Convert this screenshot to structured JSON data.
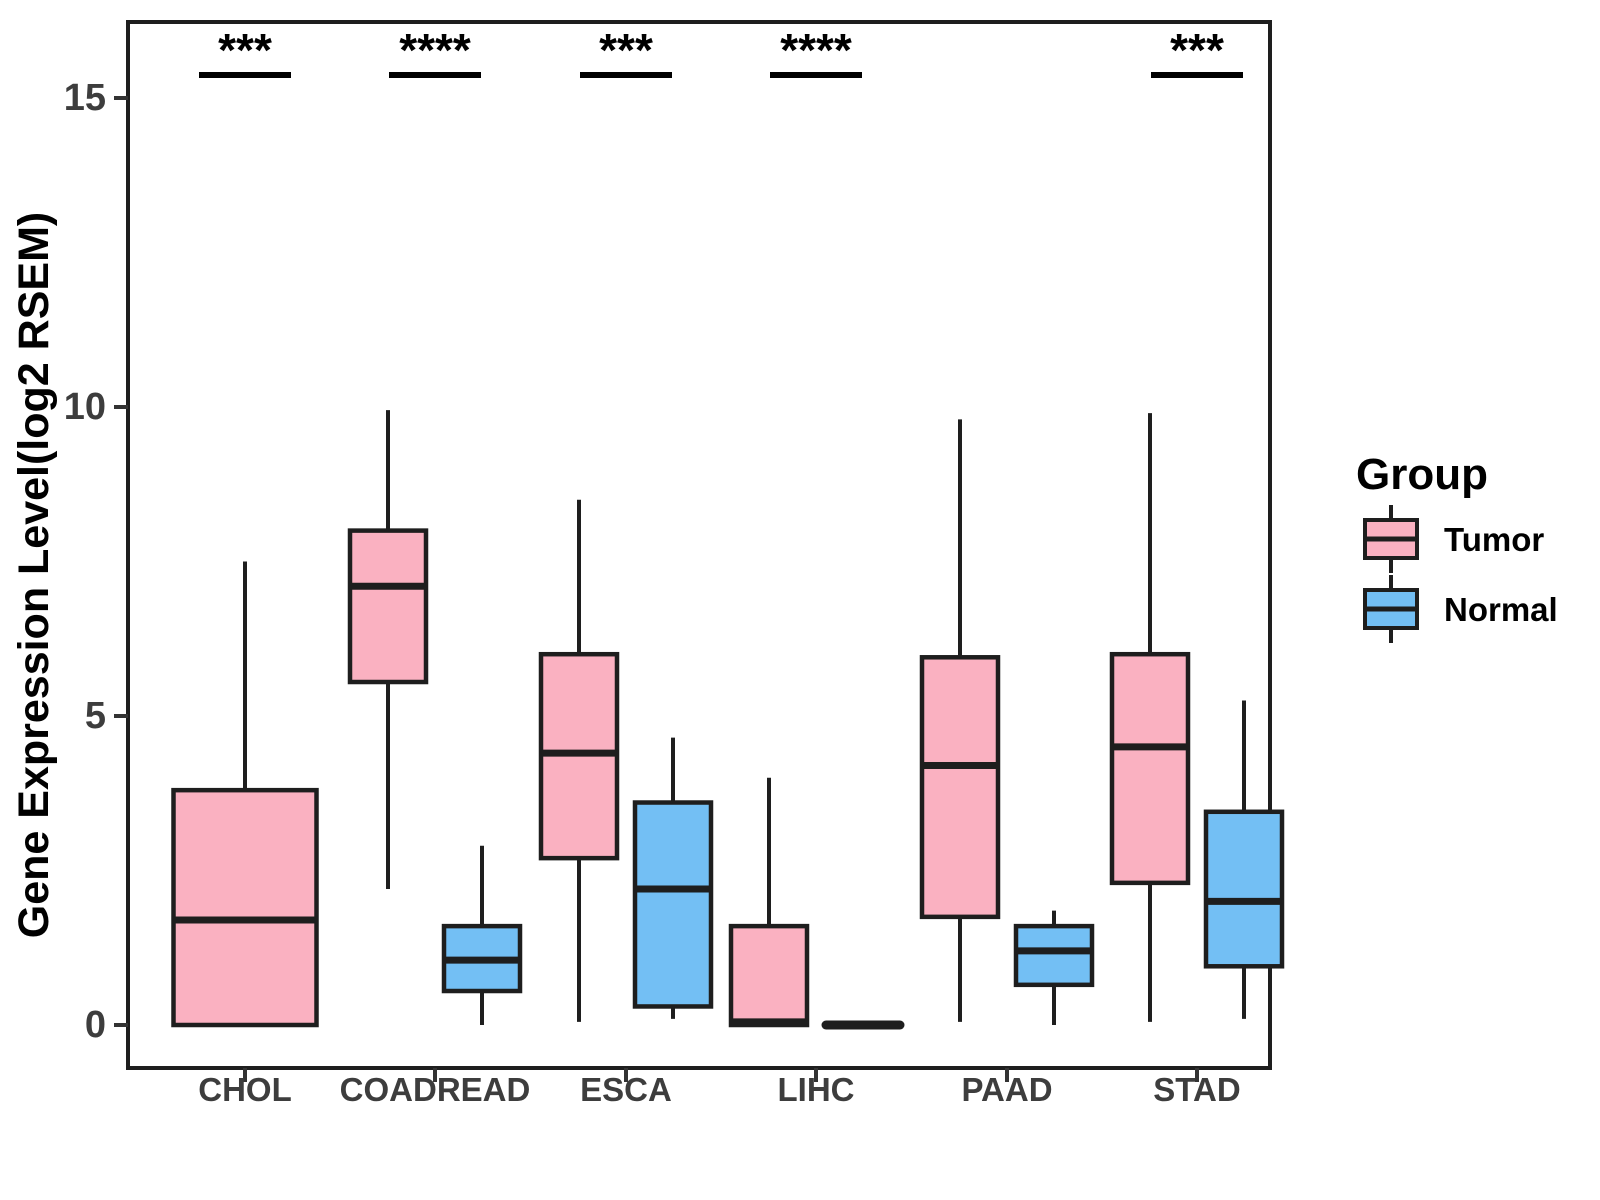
{
  "chart_data": {
    "type": "boxplot",
    "title": "",
    "xlabel": "",
    "ylabel": "Gene Expression Level(log2 RSEM)",
    "ylim": [
      -0.7,
      16.2
    ],
    "yticks": [
      0,
      5,
      10,
      15
    ],
    "categories": [
      "CHOL",
      "COADREAD",
      "ESCA",
      "LIHC",
      "PAAD",
      "STAD"
    ],
    "grid": "off",
    "legend": {
      "title": "Group",
      "position": "right",
      "entries": [
        {
          "label": "Tumor",
          "color": "#FAB1C1"
        },
        {
          "label": "Normal",
          "color": "#73BFF4"
        }
      ]
    },
    "significance": [
      {
        "category": "CHOL",
        "stars": "***"
      },
      {
        "category": "COADREAD",
        "stars": "****"
      },
      {
        "category": "ESCA",
        "stars": "***"
      },
      {
        "category": "LIHC",
        "stars": "****"
      },
      {
        "category": "STAD",
        "stars": "***"
      }
    ],
    "series": [
      {
        "name": "Tumor",
        "color": "#FAB1C1",
        "boxes": [
          {
            "category": "CHOL",
            "low": 0,
            "q1": 0,
            "median": 1.7,
            "q3": 3.8,
            "high": 7.5,
            "wide": true
          },
          {
            "category": "COADREAD",
            "low": 2.2,
            "q1": 5.55,
            "median": 7.1,
            "q3": 8.0,
            "high": 9.95
          },
          {
            "category": "ESCA",
            "low": 0.05,
            "q1": 2.7,
            "median": 4.4,
            "q3": 6.0,
            "high": 8.5
          },
          {
            "category": "LIHC",
            "low": 0,
            "q1": 0,
            "median": 0.05,
            "q3": 1.6,
            "high": 4.0
          },
          {
            "category": "PAAD",
            "low": 0.05,
            "q1": 1.75,
            "median": 4.2,
            "q3": 5.95,
            "high": 9.8
          },
          {
            "category": "STAD",
            "low": 0.05,
            "q1": 2.3,
            "median": 4.5,
            "q3": 6.0,
            "high": 9.9
          }
        ]
      },
      {
        "name": "Normal",
        "color": "#73BFF4",
        "boxes": [
          {
            "category": "CHOL",
            "absent": true
          },
          {
            "category": "COADREAD",
            "low": 0,
            "q1": 0.55,
            "median": 1.05,
            "q3": 1.6,
            "high": 2.9
          },
          {
            "category": "ESCA",
            "low": 0.1,
            "q1": 0.3,
            "median": 2.2,
            "q3": 3.6,
            "high": 4.65
          },
          {
            "category": "LIHC",
            "low": 0,
            "q1": 0,
            "median": 0,
            "q3": 0,
            "high": 0,
            "flat": true
          },
          {
            "category": "PAAD",
            "low": 0,
            "q1": 0.65,
            "median": 1.2,
            "q3": 1.6,
            "high": 1.85
          },
          {
            "category": "STAD",
            "low": 0.1,
            "q1": 0.95,
            "median": 2.0,
            "q3": 3.45,
            "high": 5.25
          }
        ]
      }
    ],
    "stroke_color": "#1E1E1E"
  }
}
